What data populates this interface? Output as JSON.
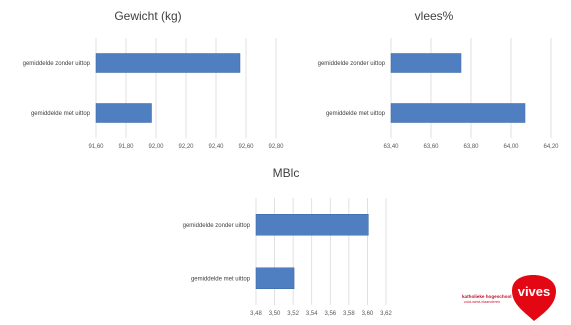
{
  "chart_data": [
    {
      "type": "bar",
      "orientation": "horizontal",
      "title": "Gewicht (kg)",
      "categories": [
        "gemiddelde zonder uittop",
        "gemiddelde met uittop"
      ],
      "values": [
        92.56,
        91.97
      ],
      "xlim": [
        91.6,
        92.8
      ],
      "ticks": [
        "91,60",
        "91,80",
        "92,00",
        "92,20",
        "92,40",
        "92,60",
        "92,80"
      ],
      "grid": true
    },
    {
      "type": "bar",
      "orientation": "horizontal",
      "title": "vlees%",
      "categories": [
        "gemiddelde zonder uittop",
        "gemiddelde met uittop"
      ],
      "values": [
        63.75,
        64.07
      ],
      "xlim": [
        63.4,
        64.2
      ],
      "ticks": [
        "63,40",
        "63,60",
        "63,80",
        "64,00",
        "64,20"
      ],
      "grid": true
    },
    {
      "type": "bar",
      "orientation": "horizontal",
      "title": "MBlc",
      "categories": [
        "gemiddelde zonder uittop",
        "gemiddelde met uittop"
      ],
      "values": [
        3.601,
        3.521
      ],
      "xlim": [
        3.48,
        3.62
      ],
      "ticks": [
        "3,48",
        "3,50",
        "3,52",
        "3,54",
        "3,56",
        "3,58",
        "3,60",
        "3,62"
      ],
      "grid": true
    }
  ],
  "logo": {
    "text": "vives",
    "line1": "katholieke hogeschool",
    "line2": "zuid-west-vlaanderen",
    "color": "#e30613"
  },
  "colors": {
    "bar": "#4f7fc1",
    "grid": "#d9d9d9"
  }
}
